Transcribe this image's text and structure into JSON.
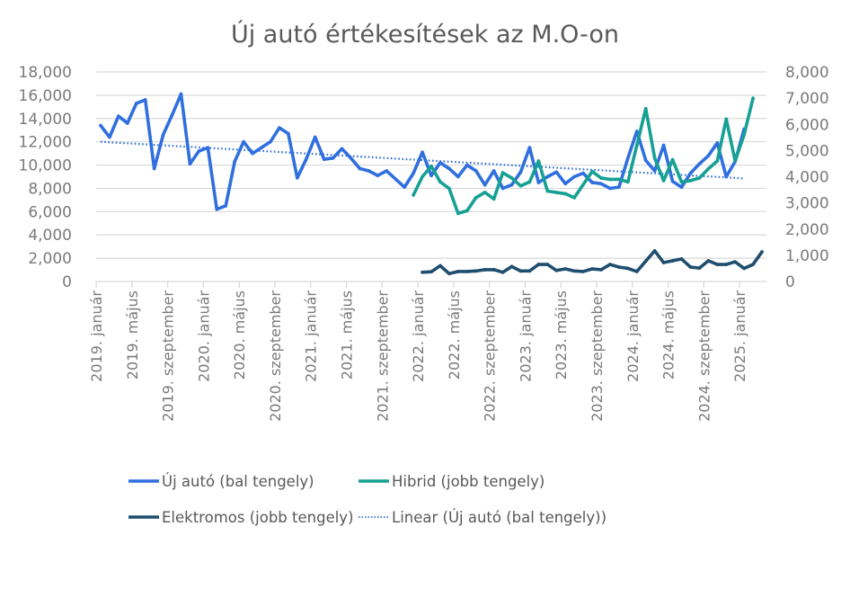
{
  "chart_data": {
    "type": "line",
    "title": "Új autó értékesítések az M.O-on",
    "xlabel": "",
    "ylabel_left": "",
    "ylabel_right": "",
    "ylim_left": [
      0,
      18000
    ],
    "ylim_right": [
      0,
      8000
    ],
    "left_ticks": [
      "0",
      "2,000",
      "4,000",
      "6,000",
      "8,000",
      "10,000",
      "12,000",
      "14,000",
      "16,000",
      "18,000"
    ],
    "right_ticks": [
      "0",
      "1,000",
      "2,000",
      "3,000",
      "4,000",
      "5,000",
      "6,000",
      "7,000",
      "8,000"
    ],
    "left_tick_values": [
      0,
      2000,
      4000,
      6000,
      8000,
      10000,
      12000,
      14000,
      16000,
      18000
    ],
    "right_tick_values": [
      0,
      1000,
      2000,
      3000,
      4000,
      5000,
      6000,
      7000,
      8000
    ],
    "x_start": "2019-01",
    "x_count": 75,
    "x_tick_labels": [
      {
        "index": 0,
        "label": "2019. január"
      },
      {
        "index": 4,
        "label": "2019. május"
      },
      {
        "index": 8,
        "label": "2019. szeptember"
      },
      {
        "index": 12,
        "label": "2020. január"
      },
      {
        "index": 16,
        "label": "2020. május"
      },
      {
        "index": 20,
        "label": "2020. szeptember"
      },
      {
        "index": 24,
        "label": "2021. január"
      },
      {
        "index": 28,
        "label": "2021. május"
      },
      {
        "index": 32,
        "label": "2021. szeptember"
      },
      {
        "index": 36,
        "label": "2022. január"
      },
      {
        "index": 40,
        "label": "2022. május"
      },
      {
        "index": 44,
        "label": "2022. szeptember"
      },
      {
        "index": 48,
        "label": "2023. január"
      },
      {
        "index": 52,
        "label": "2023. május"
      },
      {
        "index": 56,
        "label": "2023. szeptember"
      },
      {
        "index": 60,
        "label": "2024. január"
      },
      {
        "index": 64,
        "label": "2024. május"
      },
      {
        "index": 68,
        "label": "2024. szeptember"
      },
      {
        "index": 72,
        "label": "2025. január"
      }
    ],
    "grid": true,
    "legend_position": "bottom",
    "series": [
      {
        "name": "Új autó (bal tengely)",
        "axis": "left",
        "color": "#2f6fde",
        "style": "solid",
        "start_index": 0,
        "values": [
          13400,
          12400,
          14200,
          13600,
          15300,
          15600,
          9700,
          12600,
          14300,
          16100,
          10100,
          11200,
          11500,
          6200,
          6500,
          10300,
          12000,
          11000,
          11500,
          12000,
          13200,
          12700,
          8900,
          10500,
          12400,
          10500,
          10600,
          11400,
          10600,
          9700,
          9500,
          9100,
          9500,
          8800,
          8100,
          9300,
          11100,
          9100,
          10200,
          9700,
          9000,
          10000,
          9500,
          8300,
          9500,
          8000,
          8300,
          9400,
          11500,
          8500,
          9000,
          9400,
          8400,
          9000,
          9300,
          8500,
          8400,
          8000,
          8100,
          10600,
          12900,
          10400,
          9500,
          11700,
          8600,
          8100,
          9300,
          10100,
          10800,
          11900,
          9000,
          10300,
          13100
        ]
      },
      {
        "name": "Hibrid (jobb tengely)",
        "axis": "right",
        "color": "#17a094",
        "style": "solid",
        "start_index": 35,
        "values": [
          3300,
          4000,
          4400,
          3800,
          3550,
          2600,
          2700,
          3200,
          3400,
          3150,
          4150,
          3950,
          3650,
          3800,
          4600,
          3450,
          3400,
          3350,
          3200,
          3700,
          4200,
          3950,
          3900,
          3900,
          3800,
          5200,
          6600,
          4700,
          3850,
          4650,
          3800,
          3850,
          3950,
          4300,
          4600,
          6200,
          4600,
          5600,
          7000
        ]
      },
      {
        "name": "Elektromos (jobb tengely)",
        "axis": "right",
        "color": "#1f4e6e",
        "style": "solid",
        "start_index": 36,
        "values": [
          350,
          370,
          600,
          300,
          380,
          380,
          400,
          450,
          450,
          350,
          570,
          400,
          400,
          650,
          650,
          420,
          480,
          400,
          380,
          480,
          450,
          650,
          550,
          500,
          380,
          780,
          1170,
          720,
          790,
          860,
          550,
          510,
          790,
          650,
          650,
          750,
          500,
          650,
          1130
        ]
      },
      {
        "name": "Linear (Új autó (bal tengely))",
        "axis": "left",
        "color": "#2f6fde",
        "style": "dotted",
        "start_index": 0,
        "end_index": 72,
        "trend_start_value": 12000,
        "trend_end_value": 8850
      }
    ]
  }
}
